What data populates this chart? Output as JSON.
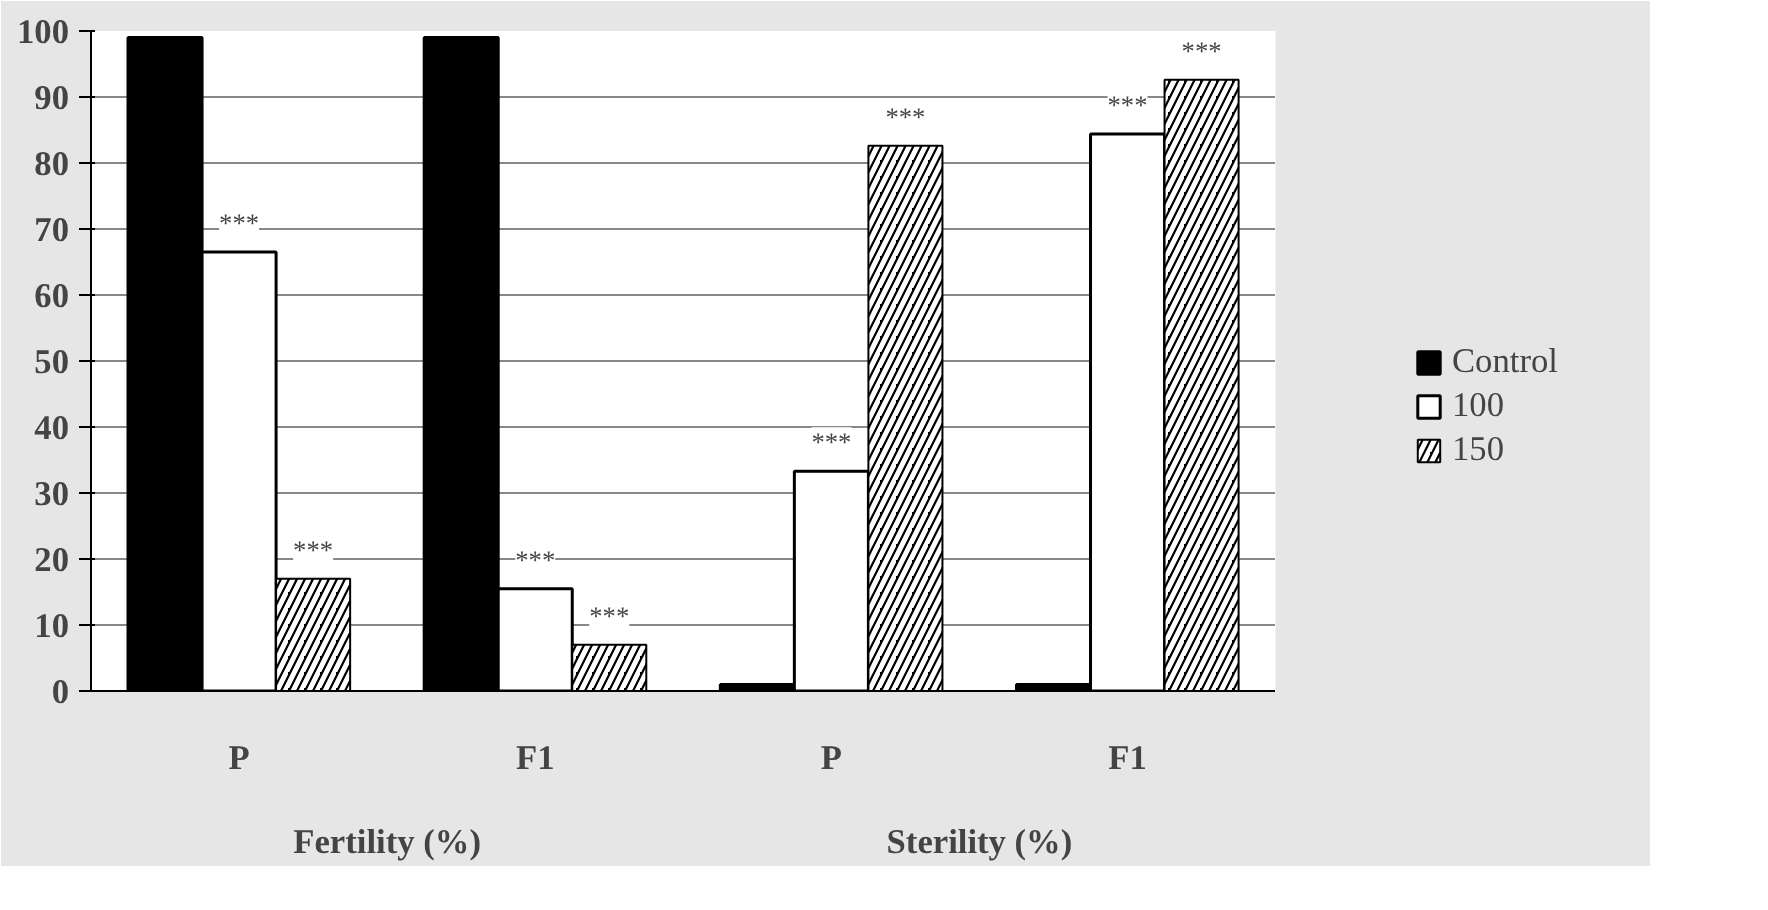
{
  "chart_data": {
    "type": "bar",
    "categories": [
      "P",
      "F1",
      "P",
      "F1"
    ],
    "series": [
      {
        "name": "Control",
        "color": "#000000",
        "values": [
          99,
          99,
          1,
          1
        ]
      },
      {
        "name": "100",
        "color": "#ffffff",
        "values": [
          66.5,
          15.5,
          33.3,
          84.4
        ],
        "value_labels": [
          "***",
          "***",
          "***",
          "***"
        ]
      },
      {
        "name": "150",
        "color": "#000000",
        "values": [
          17,
          7,
          82.6,
          92.6
        ],
        "value_labels": [
          "***",
          "***",
          "***",
          "***"
        ]
      }
    ],
    "annotations": [
      "Fertility (%)",
      "Sterility (%)"
    ],
    "ylim": [
      0,
      100
    ],
    "yticks": [
      0,
      10,
      20,
      30,
      40,
      50,
      60,
      70,
      80,
      90,
      100
    ],
    "grid": "y",
    "legend": "right"
  }
}
